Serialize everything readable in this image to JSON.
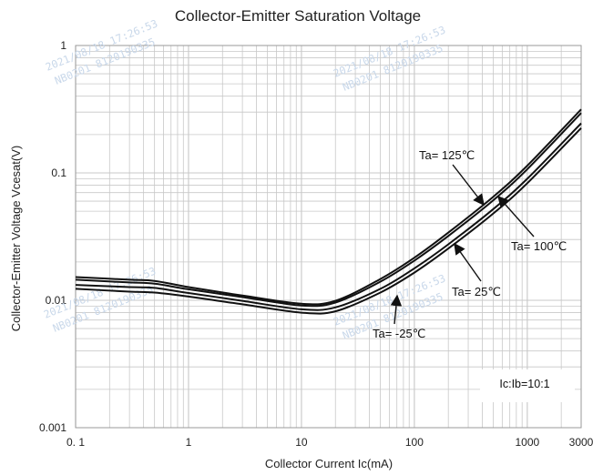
{
  "chart_data": {
    "type": "line",
    "title": "Collector-Emitter Saturation Voltage",
    "xlabel": "Collector Current   Ic(mA)",
    "ylabel": "Collector-Emitter Voltage   Vcesat(V)",
    "x_scale": "log",
    "y_scale": "log",
    "xlim": [
      0.1,
      3000
    ],
    "ylim": [
      0.001,
      1
    ],
    "x_ticks": [
      {
        "value": 0.1,
        "label": "0. 1"
      },
      {
        "value": 1,
        "label": "1"
      },
      {
        "value": 10,
        "label": "10"
      },
      {
        "value": 100,
        "label": "100"
      },
      {
        "value": 1000,
        "label": "1000"
      },
      {
        "value": 3000,
        "label": "3000"
      }
    ],
    "y_ticks": [
      {
        "value": 0.001,
        "label": "0.001"
      },
      {
        "value": 0.01,
        "label": "0.01"
      },
      {
        "value": 0.1,
        "label": "0.1"
      },
      {
        "value": 1,
        "label": "1"
      }
    ],
    "grid": true,
    "series": [
      {
        "name": "Ta= 125℃",
        "x": [
          0.1,
          0.3,
          0.5,
          1,
          3,
          10,
          20,
          50,
          100,
          200,
          500,
          1000,
          3000
        ],
        "y": [
          0.0123,
          0.0117,
          0.0115,
          0.0107,
          0.0093,
          0.008,
          0.0082,
          0.0115,
          0.0165,
          0.0255,
          0.048,
          0.083,
          0.225
        ]
      },
      {
        "name": "Ta= 100℃",
        "x": [
          0.1,
          0.3,
          0.5,
          1,
          3,
          10,
          20,
          50,
          100,
          200,
          500,
          1000,
          3000
        ],
        "y": [
          0.0132,
          0.0127,
          0.0125,
          0.0114,
          0.0099,
          0.0085,
          0.0088,
          0.0123,
          0.0178,
          0.0275,
          0.052,
          0.09,
          0.245
        ]
      },
      {
        "name": "Ta= 25℃",
        "x": [
          0.1,
          0.3,
          0.5,
          1,
          3,
          10,
          20,
          50,
          100,
          200,
          500,
          1000,
          3000
        ],
        "y": [
          0.0145,
          0.0138,
          0.0135,
          0.0122,
          0.0106,
          0.0091,
          0.0096,
          0.014,
          0.0205,
          0.032,
          0.061,
          0.107,
          0.295
        ]
      },
      {
        "name": "Ta= -25℃",
        "x": [
          0.1,
          0.3,
          0.5,
          1,
          3,
          10,
          20,
          50,
          100,
          200,
          500,
          1000,
          3000
        ],
        "y": [
          0.0152,
          0.0145,
          0.0142,
          0.0127,
          0.0109,
          0.0094,
          0.0099,
          0.0147,
          0.0216,
          0.034,
          0.065,
          0.114,
          0.315
        ]
      }
    ],
    "annotations": [
      {
        "text": "Ta= 125℃",
        "series": "Ta= 125℃"
      },
      {
        "text": "Ta= 100℃",
        "series": "Ta= 100℃"
      },
      {
        "text": "Ta= 25℃",
        "series": "Ta= 25℃"
      },
      {
        "text": "Ta= -25℃",
        "series": "Ta= -25℃"
      }
    ],
    "condition_note": "Ic:Ib=10:1",
    "line_color": "#111111",
    "grid_color": "#c8c8c8"
  },
  "watermarks": [
    "2021/08/18  17:26:53",
    "NB0201 8120190335",
    "2021/08/18  17:26:53",
    "NB0201 8120190335",
    "2021/08/18  17:26:53",
    "NB0201 8120190335",
    "2021/08/18  17:26:53",
    "NB0201 8120190335"
  ]
}
